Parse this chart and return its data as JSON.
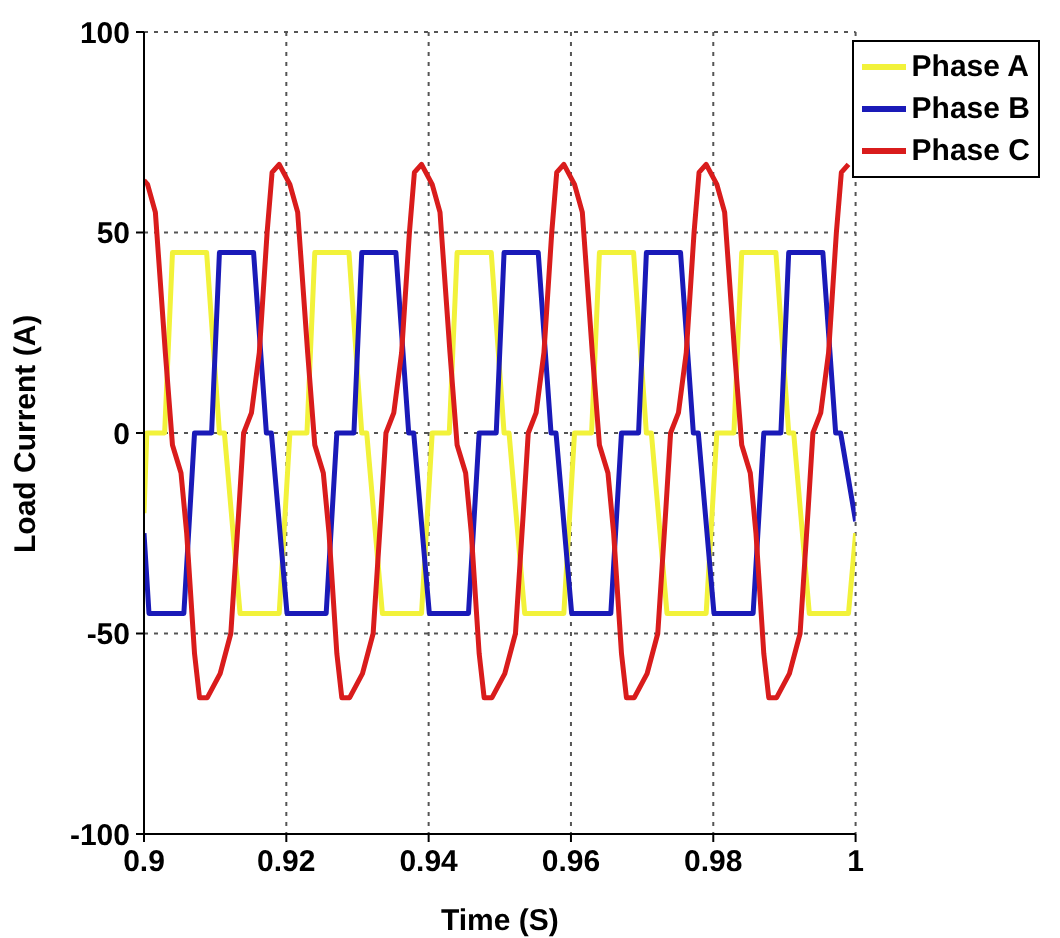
{
  "chart_data": {
    "type": "line",
    "xlabel": "Time (S)",
    "ylabel": "Load Current (A)",
    "xlim": [
      0.9,
      1
    ],
    "xticks": [
      0.9,
      0.92,
      0.94,
      0.96,
      0.98,
      1
    ],
    "ylim": [
      -100,
      100
    ],
    "yticks": [
      -100,
      -50,
      0,
      50,
      100
    ],
    "grid": true,
    "legend": "top right",
    "series": [
      {
        "name": "Phase A",
        "color": "#f2f23a",
        "x": [
          0.9,
          0.9004,
          0.9029,
          0.904,
          0.9088,
          0.9106,
          0.9113,
          0.9135,
          0.919,
          0.9205,
          0.9229,
          0.924,
          0.9288,
          0.9306,
          0.9313,
          0.9335,
          0.939,
          0.9405,
          0.9429,
          0.944,
          0.9488,
          0.9506,
          0.9513,
          0.9535,
          0.959,
          0.9605,
          0.9629,
          0.964,
          0.9688,
          0.9706,
          0.9713,
          0.9735,
          0.979,
          0.9805,
          0.9829,
          0.984,
          0.9888,
          0.9906,
          0.9913,
          0.9935,
          0.999,
          1.0
        ],
        "values": [
          -20,
          0,
          0,
          45,
          45,
          0,
          0,
          -45,
          -45,
          0,
          0,
          45,
          45,
          0,
          0,
          -45,
          -45,
          0,
          0,
          45,
          45,
          0,
          0,
          -45,
          -45,
          0,
          0,
          45,
          45,
          0,
          0,
          -45,
          -45,
          0,
          0,
          45,
          45,
          0,
          0,
          -45,
          -45,
          -25
        ]
      },
      {
        "name": "Phase B",
        "color": "#1a1ab8",
        "x": [
          0.9,
          0.9007,
          0.9056,
          0.9071,
          0.9095,
          0.9106,
          0.9154,
          0.9172,
          0.9179,
          0.9201,
          0.9256,
          0.9271,
          0.9295,
          0.9306,
          0.9354,
          0.9372,
          0.9379,
          0.9401,
          0.9456,
          0.9471,
          0.9495,
          0.9506,
          0.9554,
          0.9572,
          0.9579,
          0.9601,
          0.9656,
          0.9671,
          0.9695,
          0.9706,
          0.9754,
          0.9772,
          0.9779,
          0.9801,
          0.9856,
          0.9871,
          0.9895,
          0.9906,
          0.9954,
          0.9972,
          0.9979,
          1.0
        ],
        "values": [
          -25,
          -45,
          -45,
          0,
          0,
          45,
          45,
          0,
          0,
          -45,
          -45,
          0,
          0,
          45,
          45,
          0,
          0,
          -45,
          -45,
          0,
          0,
          45,
          45,
          0,
          0,
          -45,
          -45,
          0,
          0,
          45,
          45,
          0,
          0,
          -45,
          -45,
          0,
          0,
          45,
          45,
          0,
          0,
          -22
        ]
      },
      {
        "name": "Phase C",
        "color": "#d91c1c",
        "x": [
          0.9,
          0.9005,
          0.9016,
          0.903,
          0.904,
          0.9052,
          0.906,
          0.9071,
          0.9078,
          0.9089,
          0.9107,
          0.9122,
          0.9133,
          0.914,
          0.9151,
          0.9162,
          0.9173,
          0.918,
          0.919,
          0.9205,
          0.9216,
          0.923,
          0.924,
          0.9252,
          0.926,
          0.9271,
          0.9278,
          0.9289,
          0.9307,
          0.9322,
          0.9333,
          0.934,
          0.9351,
          0.9362,
          0.9373,
          0.938,
          0.939,
          0.9405,
          0.9416,
          0.943,
          0.944,
          0.9452,
          0.946,
          0.9471,
          0.9478,
          0.9489,
          0.9507,
          0.9522,
          0.9533,
          0.954,
          0.9551,
          0.9562,
          0.9573,
          0.958,
          0.959,
          0.9605,
          0.9616,
          0.963,
          0.964,
          0.9652,
          0.966,
          0.9671,
          0.9678,
          0.9689,
          0.9707,
          0.9722,
          0.9733,
          0.974,
          0.9751,
          0.9762,
          0.9773,
          0.978,
          0.979,
          0.9805,
          0.9816,
          0.983,
          0.984,
          0.9852,
          0.986,
          0.9871,
          0.9878,
          0.9889,
          0.9907,
          0.9922,
          0.9933,
          0.994,
          0.9951,
          0.9962,
          0.9973,
          0.998,
          0.999
        ],
        "values": [
          63,
          62,
          55,
          20,
          -3,
          -10,
          -25,
          -55,
          -66,
          -66,
          -60,
          -50,
          -20,
          0,
          5,
          20,
          50,
          65,
          67,
          62,
          55,
          20,
          -3,
          -10,
          -25,
          -55,
          -66,
          -66,
          -60,
          -50,
          -20,
          0,
          5,
          20,
          50,
          65,
          67,
          62,
          55,
          20,
          -3,
          -10,
          -25,
          -55,
          -66,
          -66,
          -60,
          -50,
          -20,
          0,
          5,
          20,
          50,
          65,
          67,
          62,
          55,
          20,
          -3,
          -10,
          -25,
          -55,
          -66,
          -66,
          -60,
          -50,
          -20,
          0,
          5,
          20,
          50,
          65,
          67,
          62,
          55,
          20,
          -3,
          -10,
          -25,
          -55,
          -66,
          -66,
          -60,
          -50,
          -20,
          0,
          5,
          20,
          50,
          65,
          67
        ]
      }
    ]
  }
}
